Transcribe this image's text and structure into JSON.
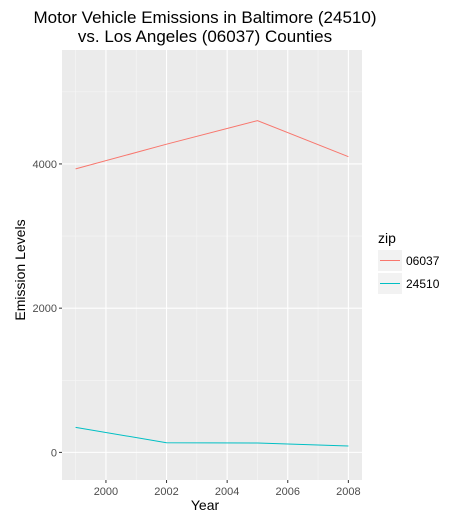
{
  "chart_data": {
    "type": "line",
    "title": "Motor Vehicle Emissions in Baltimore (24510) vs. Los Angeles (06037) Counties",
    "title_lines": [
      "Motor Vehicle Emissions in Baltimore (24510)",
      "vs. Los Angeles (06037) Counties"
    ],
    "xlabel": "Year",
    "ylabel": "Emission Levels",
    "x": [
      1999,
      2002,
      2005,
      2008
    ],
    "series": [
      {
        "name": "06037",
        "color": "#F8766D",
        "values": [
          3931,
          4274,
          4601,
          4101
        ]
      },
      {
        "name": "24510",
        "color": "#00BFC4",
        "values": [
          347,
          134,
          130,
          88
        ]
      }
    ],
    "xlim": [
      1998.55,
      2008.45
    ],
    "ylim": [
      -383,
      5580
    ],
    "x_ticks": [
      2000,
      2002,
      2004,
      2006,
      2008
    ],
    "x_tick_labels": [
      "2000",
      "2002",
      "2004",
      "2006",
      "2008"
    ],
    "y_ticks": [
      0,
      2000,
      4000
    ],
    "y_tick_labels": [
      "0",
      "2000",
      "4000"
    ],
    "legend": {
      "title": "zip",
      "position": "right"
    },
    "grid": true,
    "panel_background": "#EBEBEB"
  }
}
